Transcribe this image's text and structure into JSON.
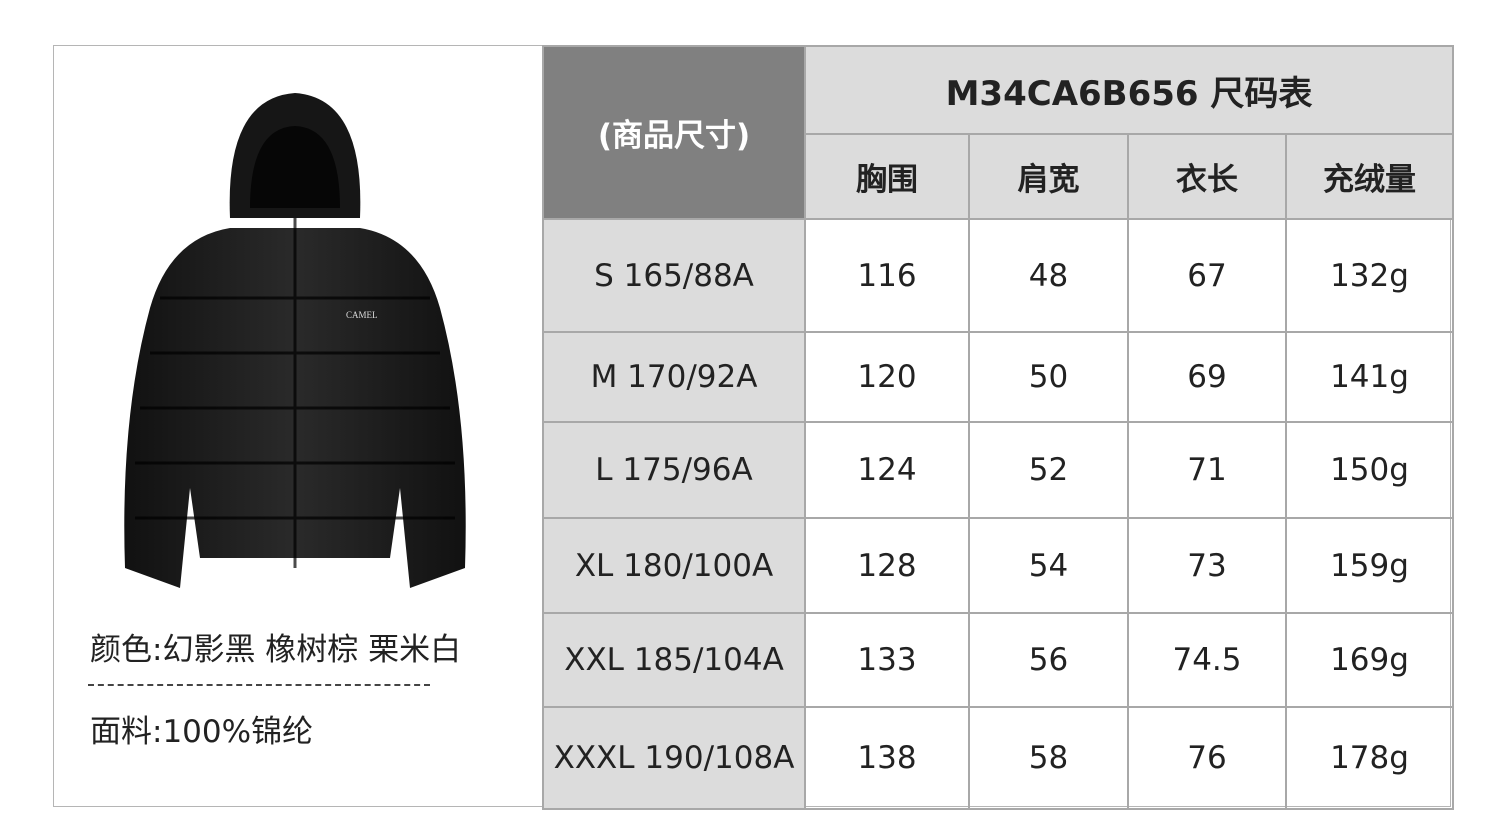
{
  "product": {
    "logo_text": "CAMEL",
    "color_line": "颜色:幻影黑 橡树棕 栗米白",
    "fabric_line": "面料:100%锦纶"
  },
  "table": {
    "corner_label": "(商品尺寸)",
    "title": "M34CA6B656 尺码表",
    "columns": [
      "胸围",
      "肩宽",
      "衣长",
      "充绒量"
    ],
    "rows": [
      {
        "size": "S 165/88A",
        "values": [
          "116",
          "48",
          "67",
          "132g"
        ]
      },
      {
        "size": "M 170/92A",
        "values": [
          "120",
          "50",
          "69",
          "141g"
        ]
      },
      {
        "size": "L 175/96A",
        "values": [
          "124",
          "52",
          "71",
          "150g"
        ]
      },
      {
        "size": "XL 180/100A",
        "values": [
          "128",
          "54",
          "73",
          "159g"
        ]
      },
      {
        "size": "XXL 185/104A",
        "values": [
          "133",
          "56",
          "74.5",
          "169g"
        ]
      },
      {
        "size": "XXXL 190/108A",
        "values": [
          "138",
          "58",
          "76",
          "178g"
        ]
      }
    ]
  },
  "colors": {
    "corner_bg": "#808080",
    "header_bg": "#dcdcdc",
    "border": "#a8a8a8"
  }
}
